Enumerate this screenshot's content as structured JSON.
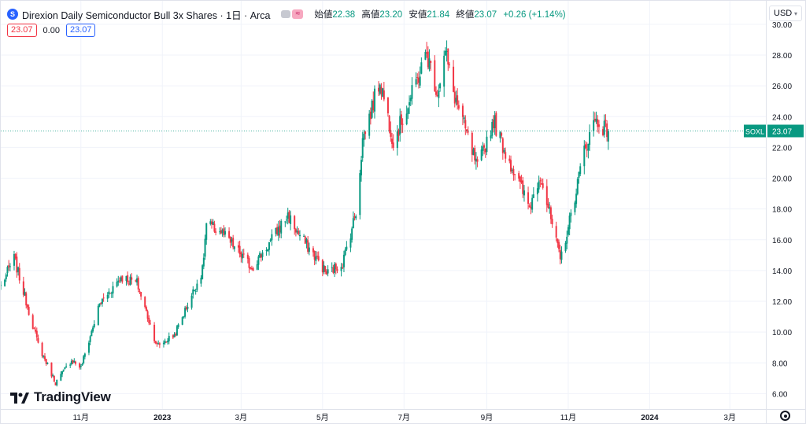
{
  "header": {
    "symbol_icon": "S",
    "title": "Direxion Daily Semiconductor Bull 3x Shares · 1日 · Arca",
    "open_label": "始値",
    "open_value": "22.38",
    "high_label": "高値",
    "high_value": "23.20",
    "low_label": "安値",
    "low_value": "21.84",
    "close_label": "終値",
    "close_value": "23.07",
    "change": "+0.26 (+1.14%)",
    "pill_b_text": "≈"
  },
  "sub": {
    "bid": "23.07",
    "spread": "0.00",
    "ask": "23.07"
  },
  "currency": {
    "label": "USD",
    "caret": "▾"
  },
  "branding": {
    "logo_text": "TradingView"
  },
  "icons": {
    "symbol": "symbol-logo-icon",
    "settings": "gear-icon",
    "logo": "tradingview-logo-icon"
  },
  "colors": {
    "up": "#089981",
    "down": "#f23645",
    "grid": "#f0f3fa",
    "last_price": "#089981"
  },
  "chart_data": {
    "type": "candlestick",
    "symbol": "SOXL",
    "last_price": 23.07,
    "y_ticks": [
      "6.00",
      "8.00",
      "10.00",
      "12.00",
      "14.00",
      "16.00",
      "18.00",
      "20.00",
      "22.00",
      "24.00",
      "26.00",
      "28.00",
      "30.00"
    ],
    "ylim": [
      5.0,
      30.2
    ],
    "x_ticks": [
      {
        "label": "11月",
        "date": "2022-11-01"
      },
      {
        "label": "2023",
        "date": "2023-01-01"
      },
      {
        "label": "3月",
        "date": "2023-03-01"
      },
      {
        "label": "5月",
        "date": "2023-05-01"
      },
      {
        "label": "7月",
        "date": "2023-07-01"
      },
      {
        "label": "9月",
        "date": "2023-09-01"
      },
      {
        "label": "11月",
        "date": "2023-11-01"
      },
      {
        "label": "2024",
        "date": "2024-01-01"
      },
      {
        "label": "3月",
        "date": "2024-03-01"
      }
    ],
    "x_range": [
      "2022-09-02",
      "2024-03-28"
    ],
    "anchors": [
      [
        "2022-09-02",
        13.0
      ],
      [
        "2022-09-12",
        14.8
      ],
      [
        "2022-09-30",
        9.2
      ],
      [
        "2022-10-13",
        6.7
      ],
      [
        "2022-10-25",
        8.2
      ],
      [
        "2022-11-01",
        7.7
      ],
      [
        "2022-11-15",
        11.8
      ],
      [
        "2022-12-01",
        13.6
      ],
      [
        "2022-12-13",
        13.2
      ],
      [
        "2022-12-28",
        9.1
      ],
      [
        "2023-01-10",
        9.8
      ],
      [
        "2023-01-31",
        14.0
      ],
      [
        "2023-02-03",
        17.0
      ],
      [
        "2023-02-14",
        16.5
      ],
      [
        "2023-03-09",
        14.2
      ],
      [
        "2023-03-20",
        15.5
      ],
      [
        "2023-04-05",
        17.6
      ],
      [
        "2023-04-12",
        16.5
      ],
      [
        "2023-04-28",
        14.6
      ],
      [
        "2023-05-04",
        13.8
      ],
      [
        "2023-05-16",
        14.5
      ],
      [
        "2023-05-26",
        17.8
      ],
      [
        "2023-05-31",
        22.5
      ],
      [
        "2023-06-13",
        26.4
      ],
      [
        "2023-06-23",
        22.4
      ],
      [
        "2023-07-06",
        25.2
      ],
      [
        "2023-07-18",
        28.1
      ],
      [
        "2023-07-26",
        25.6
      ],
      [
        "2023-08-01",
        28.2
      ],
      [
        "2023-08-07",
        25.6
      ],
      [
        "2023-08-25",
        20.6
      ],
      [
        "2023-09-06",
        23.8
      ],
      [
        "2023-09-14",
        21.9
      ],
      [
        "2023-10-03",
        18.1
      ],
      [
        "2023-10-11",
        20.3
      ],
      [
        "2023-10-26",
        14.7
      ],
      [
        "2023-11-02",
        17.2
      ],
      [
        "2023-11-13",
        21.8
      ],
      [
        "2023-11-21",
        23.8
      ],
      [
        "2023-12-01",
        23.07
      ]
    ]
  }
}
